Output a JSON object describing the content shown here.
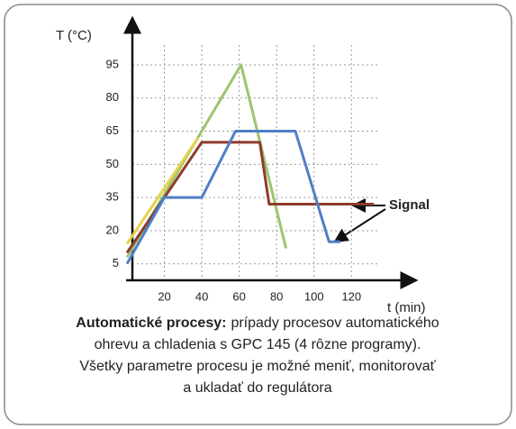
{
  "chart_data": {
    "type": "line",
    "y_label": "T (°C)",
    "x_label": "t (min)",
    "annotation": "Signal",
    "xlim": [
      0,
      155
    ],
    "ylim": [
      0,
      117
    ],
    "xticks": [
      20,
      40,
      60,
      80,
      100,
      120
    ],
    "yticks": [
      5,
      20,
      35,
      50,
      65,
      80,
      95
    ],
    "grid": true,
    "series": [
      {
        "color": "#9cc46e",
        "x": [
          0,
          61,
          85
        ],
        "values": [
          8,
          95,
          12
        ]
      },
      {
        "color": "#e6d24c",
        "x": [
          0,
          38
        ],
        "values": [
          14,
          62
        ]
      },
      {
        "color": "#8e3b2b",
        "x": [
          0,
          40,
          71,
          76,
          132
        ],
        "values": [
          10,
          60,
          60,
          32,
          32
        ]
      },
      {
        "color": "#4f7fc6",
        "x": [
          0,
          20,
          40,
          58,
          90,
          108,
          114
        ],
        "values": [
          5,
          35,
          35,
          65,
          65,
          15,
          15
        ]
      }
    ]
  },
  "caption": {
    "lead": "Automatické procesy:",
    "lines": [
      "prípady procesov automatického",
      "ohrevu a chladenia s GPC 145 (4 rôzne programy).",
      "Všetky parametre procesu  je možné meniť, monitorovať",
      "a ukladať do regulátora"
    ]
  }
}
